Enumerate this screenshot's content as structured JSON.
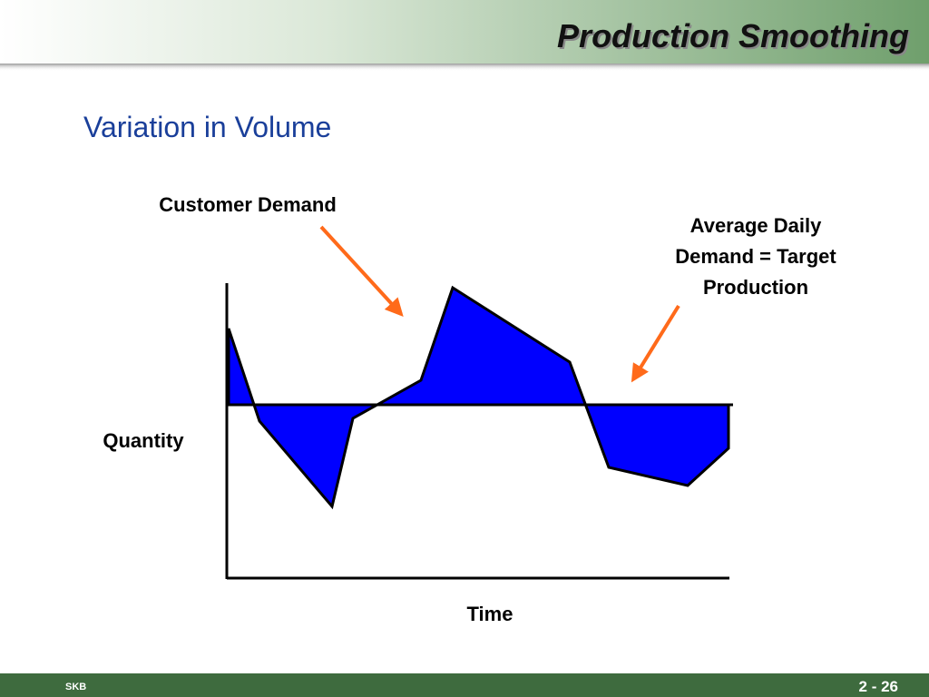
{
  "header": {
    "title": "Production Smoothing"
  },
  "subtitle": "Variation in Volume",
  "diagram": {
    "demand_label": "Customer Demand",
    "target_label": [
      "Average Daily",
      "Demand = Target",
      "Production"
    ],
    "y_axis_label": "Quantity",
    "x_axis_label": "Time"
  },
  "footer": {
    "left": "SKB",
    "page": "2 - 26"
  }
}
